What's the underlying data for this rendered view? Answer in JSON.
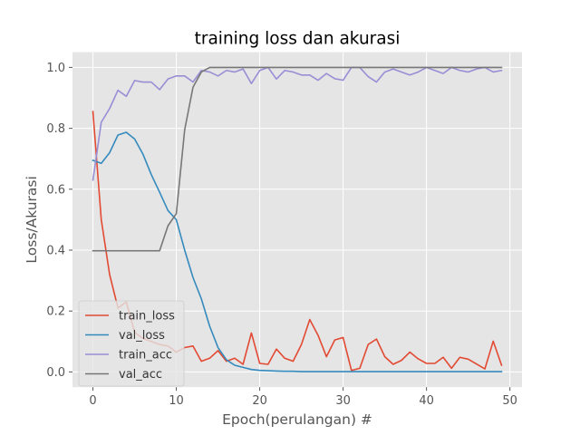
{
  "chart_data": {
    "type": "line",
    "title": "training loss dan akurasi",
    "xlabel": "Epoch(perulangan) #",
    "ylabel": "Loss/Akurasi",
    "xlim": [
      -2.45,
      51.45
    ],
    "ylim": [
      -0.05,
      1.05
    ],
    "xticks": [
      0,
      10,
      20,
      30,
      40,
      50
    ],
    "yticks": [
      0.0,
      0.2,
      0.4,
      0.6,
      0.8,
      1.0
    ],
    "ytick_labels": [
      "0.0",
      "0.2",
      "0.4",
      "0.6",
      "0.8",
      "1.0"
    ],
    "grid": true,
    "style": "ggplot",
    "legend_position": "lower-left",
    "x": [
      0,
      1,
      2,
      3,
      4,
      5,
      6,
      7,
      8,
      9,
      10,
      11,
      12,
      13,
      14,
      15,
      16,
      17,
      18,
      19,
      20,
      21,
      22,
      23,
      24,
      25,
      26,
      27,
      28,
      29,
      30,
      31,
      32,
      33,
      34,
      35,
      36,
      37,
      38,
      39,
      40,
      41,
      42,
      43,
      44,
      45,
      46,
      47,
      48,
      49
    ],
    "series": [
      {
        "name": "train_loss",
        "color": "#E24A33",
        "values": [
          0.855,
          0.5,
          0.32,
          0.21,
          0.23,
          0.13,
          0.11,
          0.1,
          0.09,
          0.085,
          0.065,
          0.08,
          0.085,
          0.035,
          0.045,
          0.07,
          0.035,
          0.045,
          0.025,
          0.128,
          0.028,
          0.025,
          0.075,
          0.045,
          0.035,
          0.09,
          0.172,
          0.12,
          0.05,
          0.105,
          0.113,
          0.005,
          0.012,
          0.09,
          0.108,
          0.05,
          0.025,
          0.038,
          0.065,
          0.043,
          0.028,
          0.028,
          0.048,
          0.012,
          0.048,
          0.042,
          0.026,
          0.01,
          0.101,
          0.022
        ]
      },
      {
        "name": "val_loss",
        "color": "#348ABD",
        "values": [
          0.695,
          0.685,
          0.72,
          0.778,
          0.787,
          0.765,
          0.715,
          0.648,
          0.59,
          0.53,
          0.5,
          0.4,
          0.31,
          0.24,
          0.15,
          0.08,
          0.04,
          0.022,
          0.015,
          0.008,
          0.005,
          0.004,
          0.003,
          0.002,
          0.002,
          0.001,
          0.001,
          0.001,
          0.001,
          0.001,
          0.001,
          0.001,
          0.001,
          0.001,
          0.001,
          0.001,
          0.001,
          0.001,
          0.001,
          0.001,
          0.001,
          0.001,
          0.001,
          0.001,
          0.001,
          0.001,
          0.001,
          0.001,
          0.001,
          0.001
        ]
      },
      {
        "name": "train_acc",
        "color": "#988ED5",
        "values": [
          0.63,
          0.82,
          0.865,
          0.925,
          0.905,
          0.957,
          0.952,
          0.952,
          0.927,
          0.962,
          0.972,
          0.972,
          0.952,
          0.99,
          0.985,
          0.972,
          0.99,
          0.985,
          0.995,
          0.947,
          0.99,
          1.0,
          0.962,
          0.99,
          0.985,
          0.975,
          0.975,
          0.958,
          0.98,
          0.963,
          0.958,
          1.0,
          1.0,
          0.97,
          0.952,
          0.985,
          0.995,
          0.985,
          0.975,
          0.985,
          1.0,
          0.99,
          0.98,
          1.0,
          0.99,
          0.985,
          0.995,
          1.0,
          0.985,
          0.99
        ]
      },
      {
        "name": "val_acc",
        "color": "#777777",
        "values": [
          0.398,
          0.398,
          0.398,
          0.398,
          0.398,
          0.398,
          0.398,
          0.398,
          0.398,
          0.48,
          0.52,
          0.795,
          0.935,
          0.985,
          1.0,
          1.0,
          1.0,
          1.0,
          1.0,
          1.0,
          1.0,
          1.0,
          1.0,
          1.0,
          1.0,
          1.0,
          1.0,
          1.0,
          1.0,
          1.0,
          1.0,
          1.0,
          1.0,
          1.0,
          1.0,
          1.0,
          1.0,
          1.0,
          1.0,
          1.0,
          1.0,
          1.0,
          1.0,
          1.0,
          1.0,
          1.0,
          1.0,
          1.0,
          1.0,
          1.0
        ]
      }
    ]
  }
}
